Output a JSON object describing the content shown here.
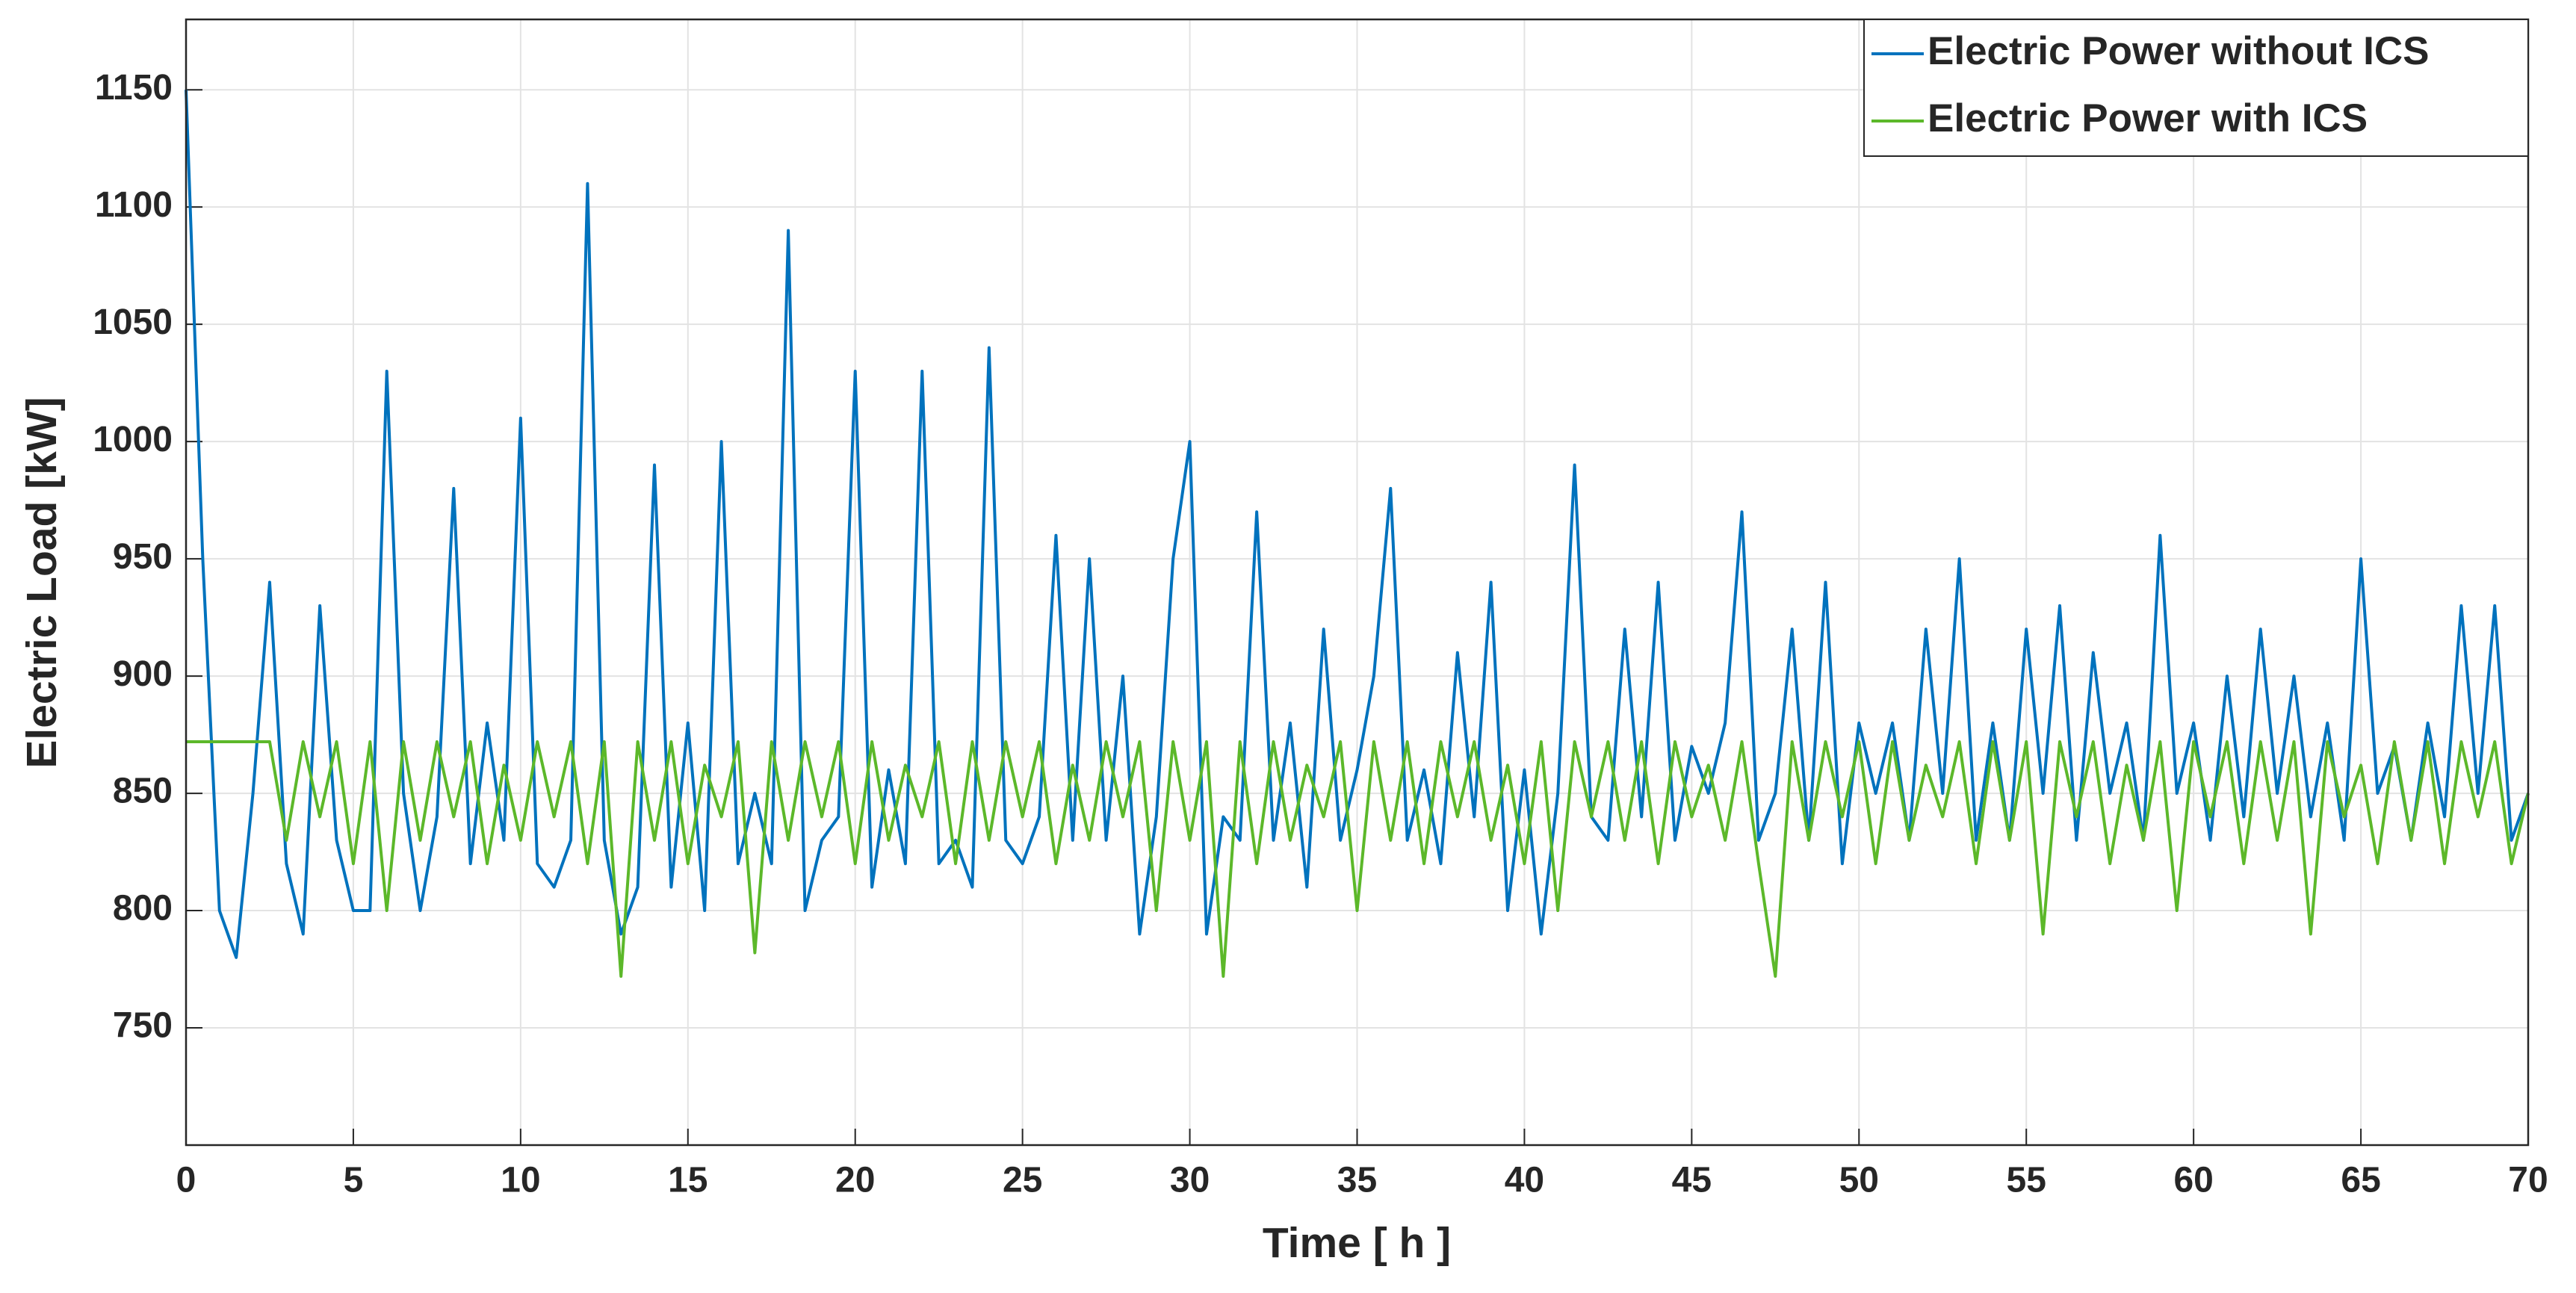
{
  "chart_data": {
    "type": "line",
    "xlabel": "Time [ h ]",
    "ylabel": "Electric Load [kW]",
    "x": [
      0,
      0.5,
      1,
      1.5,
      2,
      2.5,
      3,
      3.5,
      4,
      4.5,
      5,
      5.5,
      6,
      6.5,
      7,
      7.5,
      8,
      8.5,
      9,
      9.5,
      10,
      10.5,
      11,
      11.5,
      12,
      12.5,
      13,
      13.5,
      14,
      14.5,
      15,
      15.5,
      16,
      16.5,
      17,
      17.5,
      18,
      18.5,
      19,
      19.5,
      20,
      20.5,
      21,
      21.5,
      22,
      22.5,
      23,
      23.5,
      24,
      24.5,
      25,
      25.5,
      26,
      26.5,
      27,
      27.5,
      28,
      28.5,
      29,
      29.5,
      30,
      30.5,
      31,
      31.5,
      32,
      32.5,
      33,
      33.5,
      34,
      34.5,
      35,
      35.5,
      36,
      36.5,
      37,
      37.5,
      38,
      38.5,
      39,
      39.5,
      40,
      40.5,
      41,
      41.5,
      42,
      42.5,
      43,
      43.5,
      44,
      44.5,
      45,
      45.5,
      46,
      46.5,
      47,
      47.5,
      48,
      48.5,
      49,
      49.5,
      50,
      50.5,
      51,
      51.5,
      52,
      52.5,
      53,
      53.5,
      54,
      54.5,
      55,
      55.5,
      56,
      56.5,
      57,
      57.5,
      58,
      58.5,
      59,
      59.5,
      60,
      60.5,
      61,
      61.5,
      62,
      62.5,
      63,
      63.5,
      64,
      64.5,
      65,
      65.5,
      66,
      66.5,
      67,
      67.5,
      68,
      68.5,
      69,
      69.5,
      70
    ],
    "series": [
      {
        "name": "Electric Power without ICS",
        "color": "#0072bd",
        "values": [
          1150,
          950,
          800,
          780,
          850,
          940,
          820,
          790,
          930,
          830,
          800,
          800,
          1030,
          850,
          800,
          840,
          980,
          820,
          880,
          830,
          1010,
          820,
          810,
          830,
          1110,
          830,
          790,
          810,
          990,
          810,
          880,
          800,
          1000,
          820,
          850,
          820,
          1090,
          800,
          830,
          840,
          1030,
          810,
          860,
          820,
          1030,
          820,
          830,
          810,
          1040,
          830,
          820,
          840,
          960,
          830,
          950,
          830,
          900,
          790,
          840,
          950,
          1000,
          790,
          840,
          830,
          970,
          830,
          880,
          810,
          920,
          830,
          860,
          900,
          980,
          830,
          860,
          820,
          910,
          840,
          940,
          800,
          860,
          790,
          850,
          990,
          840,
          830,
          920,
          840,
          940,
          830,
          870,
          850,
          880,
          970,
          830,
          850,
          920,
          830,
          940,
          820,
          880,
          850,
          880,
          830,
          920,
          850,
          950,
          830,
          880,
          830,
          920,
          850,
          930,
          830,
          910,
          850,
          880,
          830,
          960,
          850,
          880,
          830,
          900,
          840,
          920,
          850,
          900,
          840,
          880,
          830,
          950,
          850,
          870,
          830,
          880,
          840,
          930,
          850,
          930,
          830,
          850
        ]
      },
      {
        "name": "Electric Power with ICS",
        "color": "#5cb82a",
        "values": [
          872,
          872,
          872,
          872,
          872,
          872,
          830,
          872,
          840,
          872,
          820,
          872,
          800,
          872,
          830,
          872,
          840,
          872,
          820,
          862,
          830,
          872,
          840,
          872,
          820,
          872,
          772,
          872,
          830,
          872,
          820,
          862,
          840,
          872,
          782,
          872,
          830,
          872,
          840,
          872,
          820,
          872,
          830,
          862,
          840,
          872,
          820,
          872,
          830,
          872,
          840,
          872,
          820,
          862,
          830,
          872,
          840,
          872,
          800,
          872,
          830,
          872,
          772,
          872,
          820,
          872,
          830,
          862,
          840,
          872,
          800,
          872,
          830,
          872,
          820,
          872,
          840,
          872,
          830,
          862,
          820,
          872,
          800,
          872,
          840,
          872,
          830,
          872,
          820,
          872,
          840,
          862,
          830,
          872,
          820,
          772,
          872,
          830,
          872,
          840,
          872,
          820,
          872,
          830,
          862,
          840,
          872,
          820,
          872,
          830,
          872,
          790,
          872,
          840,
          872,
          820,
          862,
          830,
          872,
          800,
          872,
          840,
          872,
          820,
          872,
          830,
          872,
          790,
          872,
          840,
          862,
          820,
          872,
          830,
          872,
          820,
          872,
          840,
          872,
          820,
          850
        ]
      }
    ],
    "xlim": [
      0,
      70
    ],
    "xticks": [
      0,
      5,
      10,
      15,
      20,
      25,
      30,
      35,
      40,
      45,
      50,
      55,
      60,
      65,
      70
    ],
    "ylim": [
      700,
      1180
    ],
    "yticks": [
      750,
      800,
      850,
      900,
      950,
      1000,
      1050,
      1100,
      1150
    ],
    "grid": true,
    "legend": "upper right"
  }
}
